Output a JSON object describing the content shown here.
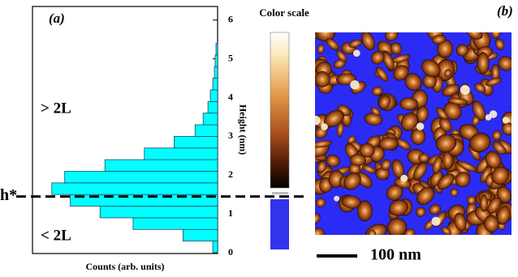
{
  "chart_data": {
    "type": "histogram",
    "orientation": "horizontal",
    "panel_label": "(a)",
    "bins": [
      0,
      0.3,
      0.6,
      0.9,
      1.2,
      1.5,
      1.8,
      2.1,
      2.4,
      2.7,
      3,
      3.3,
      3.6,
      3.9,
      4.2,
      4.5,
      4.8,
      5.1,
      5.4
    ],
    "values": [
      6,
      43,
      105,
      146,
      183,
      206,
      190,
      140,
      91,
      54,
      28,
      18,
      12,
      9,
      6,
      4,
      3,
      2
    ],
    "color": "#00ffff",
    "xlabel": "Counts (arb. units)",
    "ylabel": "Height (nm)",
    "xlim": [
      0,
      230
    ],
    "ylim": [
      0,
      6.35
    ],
    "yticks": [
      0,
      1,
      2,
      3,
      4,
      5,
      6
    ],
    "annotations": [
      "> 2L",
      "< 2L"
    ],
    "reference_line": {
      "label": "h*",
      "value": 1.45
    }
  },
  "image_panel": {
    "label": "(b)",
    "color_scale_title": "Color scale",
    "scale_bar": "100 nm"
  }
}
